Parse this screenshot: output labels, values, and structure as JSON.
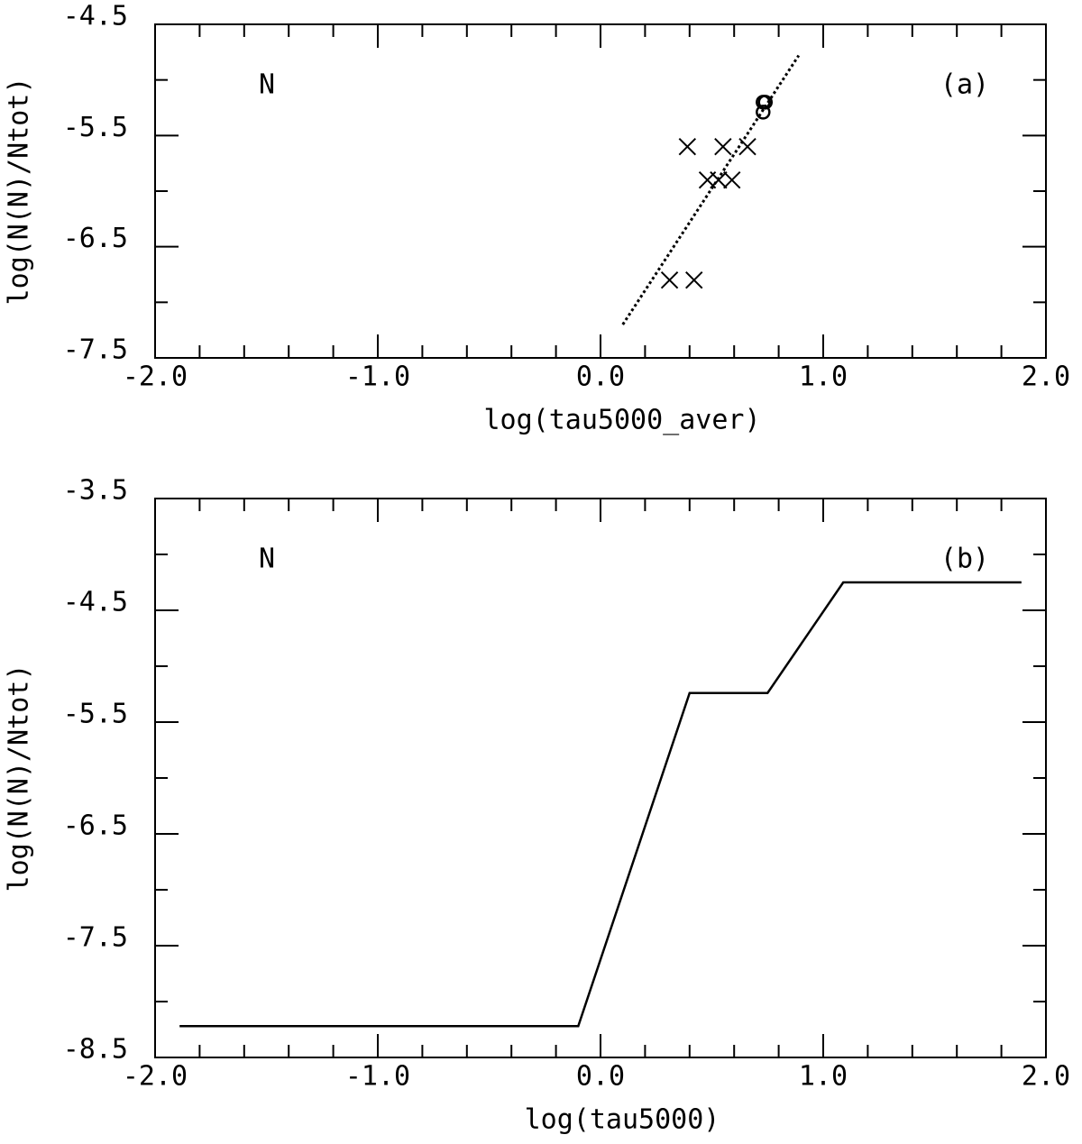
{
  "chart_data": [
    {
      "type": "scatter",
      "annotations": [
        "N",
        "(a)"
      ],
      "xlabel": "log(tau5000_aver)",
      "ylabel": "log(N(N)/Ntot)",
      "xlim": [
        -2,
        2
      ],
      "ylim": [
        -7.5,
        -4.5
      ],
      "xticks": [
        {
          "value": -2,
          "label": "-2.0"
        },
        {
          "value": -1,
          "label": "-1.0"
        },
        {
          "value": 0,
          "label": "0.0"
        },
        {
          "value": 1,
          "label": "1.0"
        },
        {
          "value": 2,
          "label": "2.0"
        }
      ],
      "xminorticks": [
        -1.8,
        -1.6,
        -1.4,
        -1.2,
        -0.8,
        -0.6,
        -0.4,
        -0.2,
        0.2,
        0.4,
        0.6,
        0.8,
        1.2,
        1.4,
        1.6,
        1.8
      ],
      "yticks": [
        -4.5,
        -5.5,
        -6.5,
        -7.5
      ],
      "yminorticks": [
        -5,
        -6,
        -7
      ],
      "series": [
        {
          "marker": "x",
          "color": "#000000",
          "x": [
            0.39,
            0.55,
            0.66,
            0.48,
            0.53,
            0.59,
            0.31,
            0.42
          ],
          "values": [
            -5.6,
            -5.6,
            -5.6,
            -5.9,
            -5.9,
            -5.9,
            -6.8,
            -6.8
          ]
        },
        {
          "marker": "o",
          "color": "#000000",
          "x": [
            0.73,
            0.74,
            0.73
          ],
          "values": [
            -5.2,
            -5.2,
            -5.29
          ]
        },
        {
          "marker": "dotted",
          "color": "#000000",
          "x": [
            0.1,
            0.89
          ],
          "values": [
            -7.2,
            -4.78
          ]
        }
      ]
    },
    {
      "type": "line",
      "annotations": [
        "N",
        "(b)"
      ],
      "xlabel": "log(tau5000)",
      "ylabel": "log(N(N)/Ntot)",
      "xlim": [
        -2,
        2
      ],
      "ylim": [
        -8.5,
        -3.5
      ],
      "xticks": [
        {
          "value": -2,
          "label": "-2.0"
        },
        {
          "value": -1,
          "label": "-1.0"
        },
        {
          "value": 0,
          "label": "0.0"
        },
        {
          "value": 1,
          "label": "1.0"
        },
        {
          "value": 2,
          "label": "2.0"
        }
      ],
      "xminorticks": [
        -1.8,
        -1.6,
        -1.4,
        -1.2,
        -0.8,
        -0.6,
        -0.4,
        -0.2,
        0.2,
        0.4,
        0.6,
        0.8,
        1.2,
        1.4,
        1.6,
        1.8
      ],
      "yticks": [
        -3.5,
        -4.5,
        -5.5,
        -6.5,
        -7.5,
        -8.5
      ],
      "yminorticks": [
        -4,
        -5,
        -6,
        -7,
        -8
      ],
      "series": [
        {
          "marker": "solid",
          "color": "#000000",
          "x": [
            -1.89,
            -0.1,
            0.4,
            0.75,
            1.09,
            1.89
          ],
          "values": [
            -8.22,
            -8.22,
            -5.24,
            -5.24,
            -4.25,
            -4.25
          ]
        }
      ]
    }
  ]
}
